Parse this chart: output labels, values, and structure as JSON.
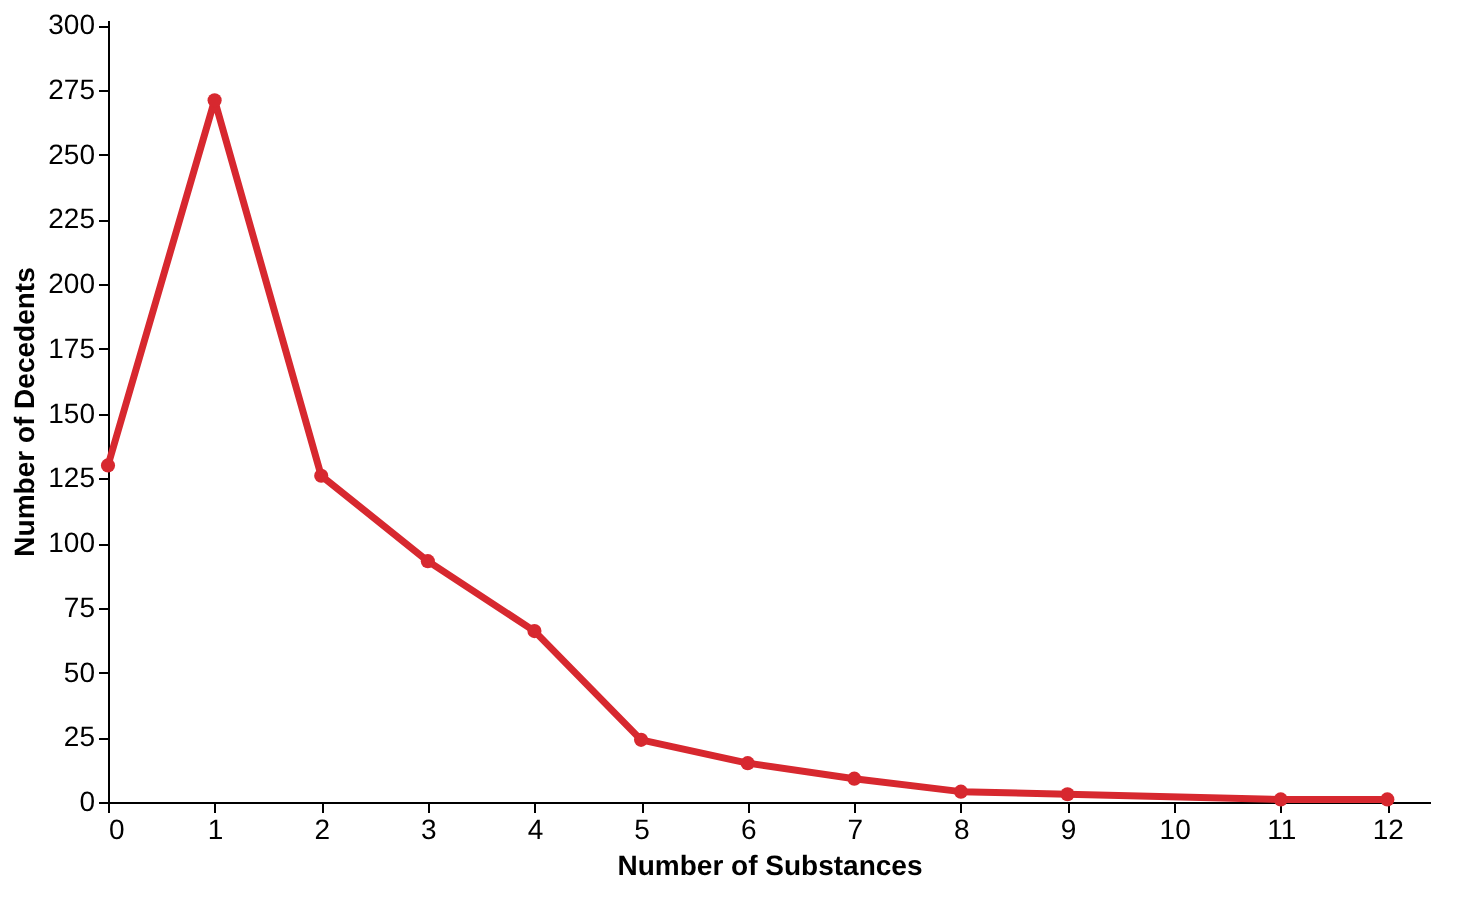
{
  "chart_data": {
    "type": "line",
    "xlabel": "Number of Substances",
    "ylabel": "Number of Decedents",
    "x": [
      0,
      1,
      2,
      3,
      4,
      5,
      6,
      7,
      8,
      9,
      11,
      12
    ],
    "series": [
      {
        "color": "#d7282f",
        "values": [
          130,
          271,
          126,
          93,
          66,
          24,
          15,
          9,
          4,
          3,
          1,
          1
        ]
      }
    ],
    "xlim": [
      0,
      12.4
    ],
    "xticks": [
      0,
      1,
      2,
      3,
      4,
      5,
      6,
      7,
      8,
      9,
      10,
      11,
      12
    ],
    "ylim": [
      0,
      302
    ],
    "yticks": [
      0,
      25,
      50,
      75,
      100,
      125,
      150,
      175,
      200,
      225,
      250,
      275,
      300
    ],
    "grid": false,
    "marker": "circle",
    "line_style": "solid"
  }
}
